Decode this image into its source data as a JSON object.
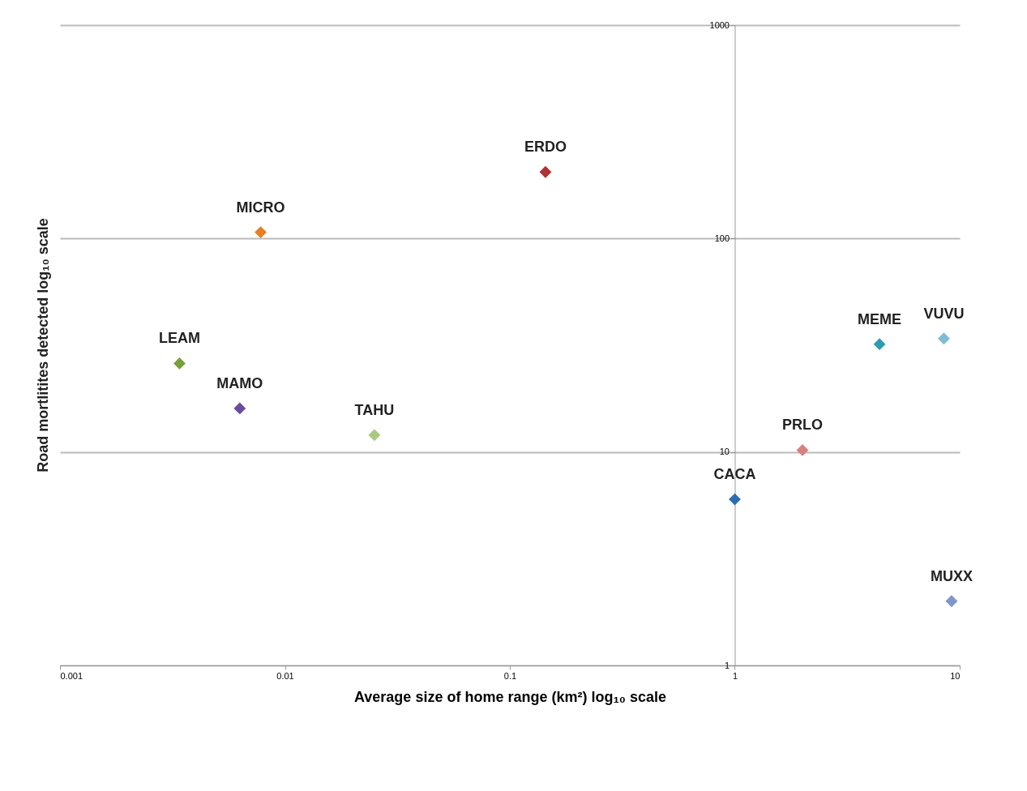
{
  "chart_data": {
    "type": "scatter",
    "xlabel": "Average size of home range (km²) log₁₀ scale",
    "ylabel": "Road mortlitites detected log₁₀ scale",
    "log": "xy",
    "xlim": [
      0.001,
      10
    ],
    "xticks": [
      0.001,
      0.01,
      0.1,
      1,
      10
    ],
    "ylim": [
      1,
      1000
    ],
    "yticks": [
      1,
      10,
      100,
      1000
    ],
    "grid": "y",
    "legend": false,
    "marker": "diamond",
    "series": [
      {
        "name": "LEAM",
        "color": "#77a03a",
        "x": [
          0.0034
        ],
        "values": [
          26
        ]
      },
      {
        "name": "MAMO",
        "color": "#6a4c9c",
        "x": [
          0.0063
        ],
        "values": [
          16
        ]
      },
      {
        "name": "MICRO",
        "color": "#e87d26",
        "x": [
          0.0078
        ],
        "values": [
          107
        ]
      },
      {
        "name": "TAHU",
        "color": "#a9c981",
        "x": [
          0.025
        ],
        "values": [
          12
        ]
      },
      {
        "name": "ERDO",
        "color": "#b03232",
        "x": [
          0.144
        ],
        "values": [
          205
        ]
      },
      {
        "name": "CACA",
        "color": "#2e6db4",
        "x": [
          1.0
        ],
        "values": [
          6
        ]
      },
      {
        "name": "PRLO",
        "color": "#d98080",
        "x": [
          2.0
        ],
        "values": [
          10.2
        ]
      },
      {
        "name": "MEME",
        "color": "#2f9ab4",
        "x": [
          4.4
        ],
        "values": [
          32
        ]
      },
      {
        "name": "VUVU",
        "color": "#7fbcd2",
        "x": [
          8.5
        ],
        "values": [
          34
        ]
      },
      {
        "name": "MUXX",
        "color": "#7f96c8",
        "x": [
          9.2
        ],
        "values": [
          2
        ]
      }
    ]
  }
}
